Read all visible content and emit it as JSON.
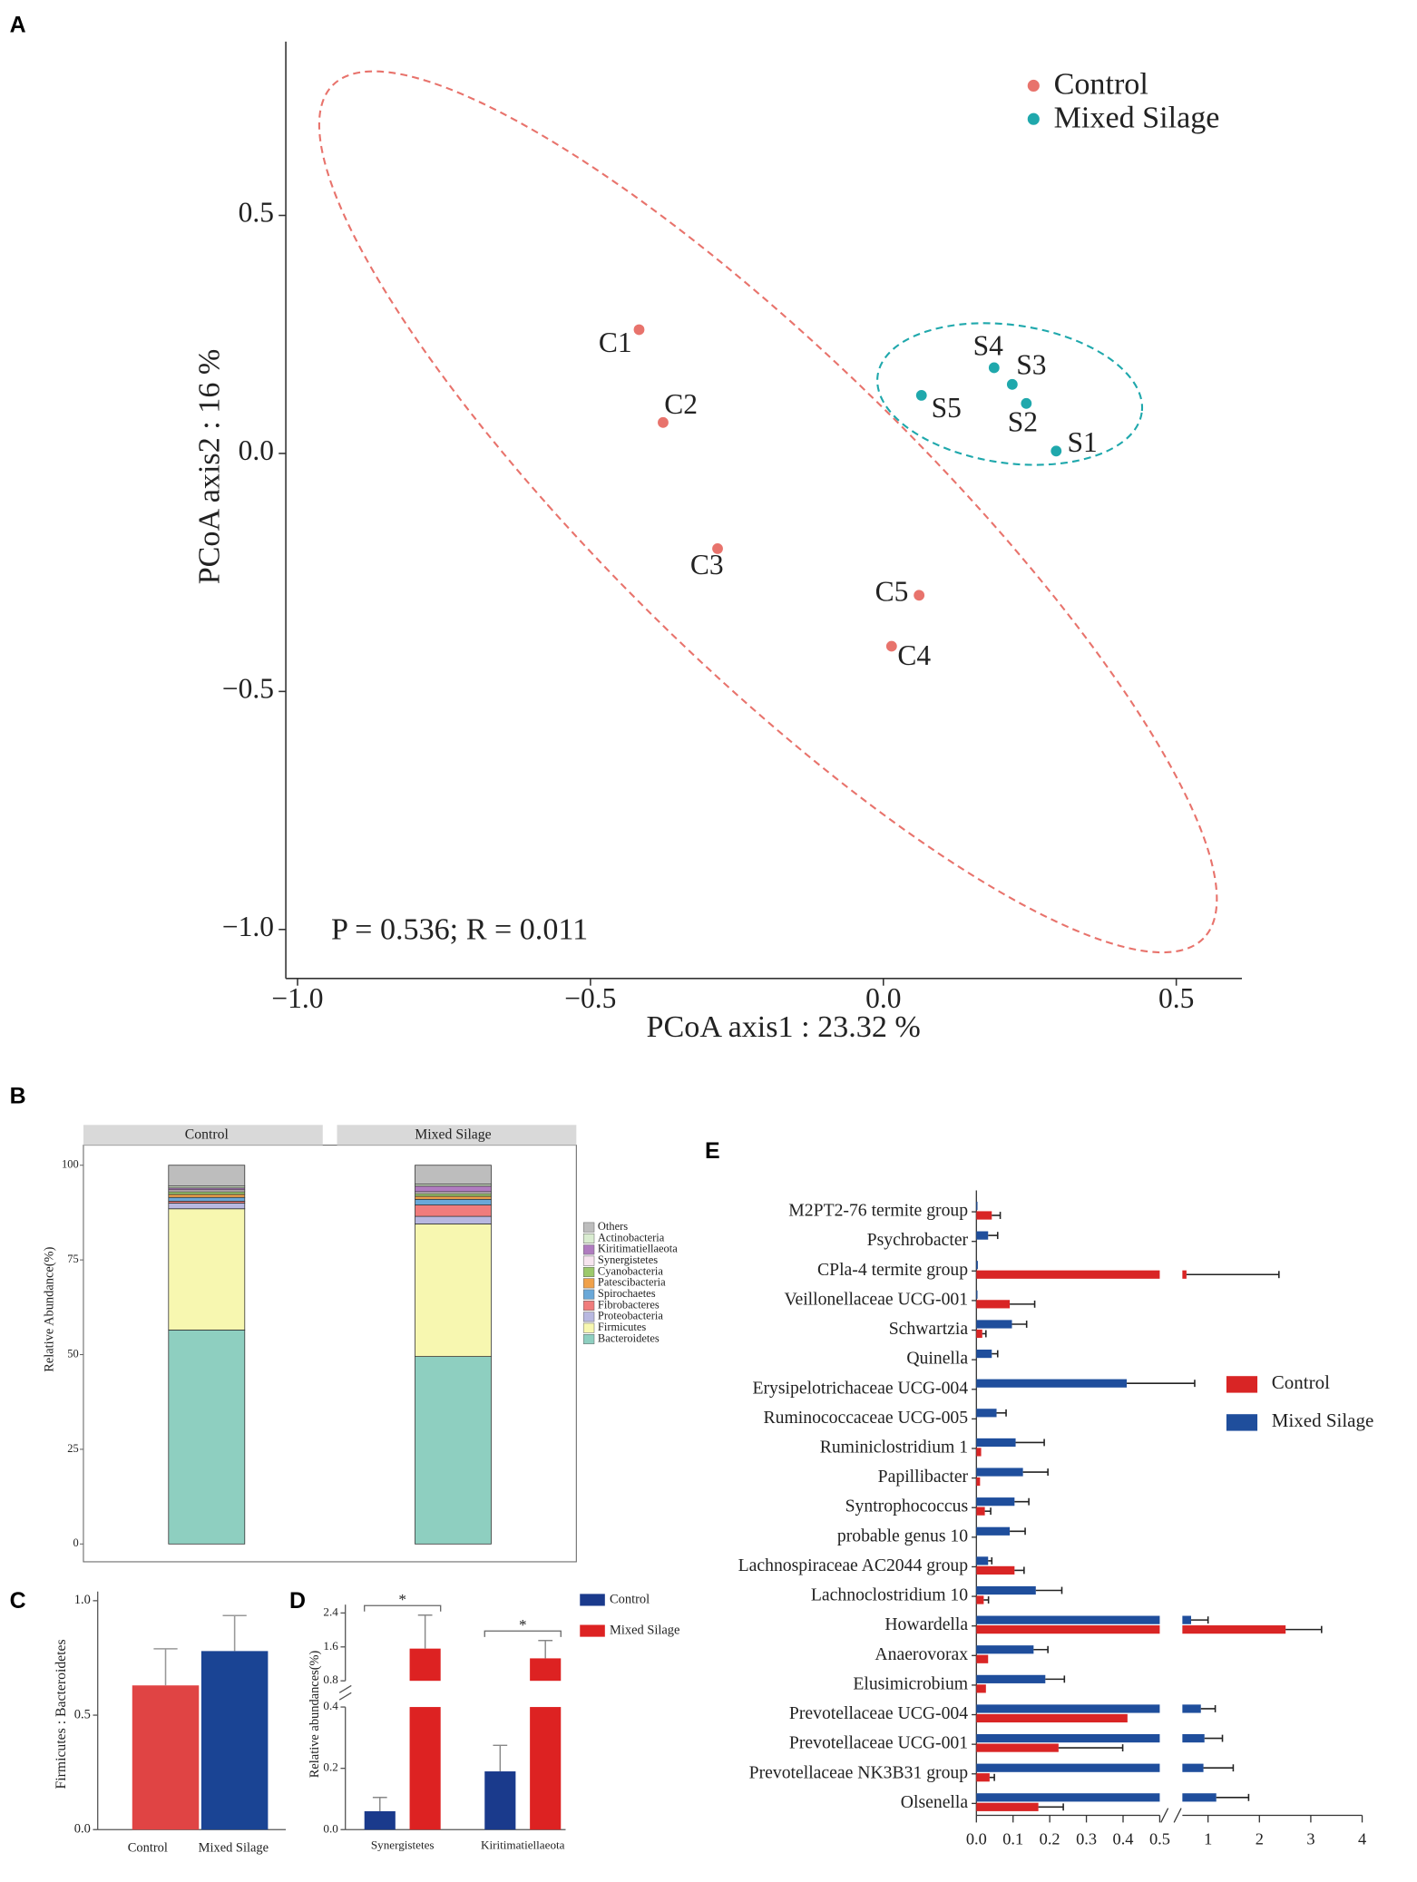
{
  "chart_data": [
    {
      "type": "scatter",
      "panel": "A",
      "xlabel": "PCoA axis1 : 23.32 %",
      "ylabel": "PCoA axis2 : 16 %",
      "annotation": "P = 0.536; R = 0.011",
      "xlim": [
        -1.02,
        0.612
      ],
      "ylim": [
        -1.103,
        0.865
      ],
      "xticks": [
        {
          "value": -1,
          "label": "−1.0"
        },
        {
          "value": -0.5,
          "label": "−0.5"
        },
        {
          "value": 0,
          "label": "0.0"
        },
        0.5
      ],
      "yticks": [
        {
          "value": -1,
          "label": "−1.0"
        },
        {
          "value": -0.5,
          "label": "−0.5"
        },
        {
          "value": 0,
          "label": "0.0"
        },
        0.5
      ],
      "series": [
        {
          "name": "Control",
          "color": "#e8736c",
          "labels": [
            "C1",
            "C2",
            "C3",
            "C4",
            "C5"
          ],
          "x": [
            -0.417,
            -0.376,
            -0.283,
            0.014,
            0.061
          ],
          "y": [
            0.26,
            0.065,
            -0.2,
            -0.405,
            -0.298
          ]
        },
        {
          "name": "Mixed Silage",
          "color": "#1fa8ac",
          "labels": [
            "S1",
            "S2",
            "S3",
            "S4",
            "S5"
          ],
          "x": [
            0.295,
            0.244,
            0.22,
            0.189,
            0.065
          ],
          "y": [
            0.005,
            0.105,
            0.145,
            0.18,
            0.122
          ]
        }
      ]
    },
    {
      "type": "stacked_bar",
      "panel": "B",
      "ylabel": "Relative Abundance(%)",
      "categories": [
        "Control",
        "Mixed Silage"
      ],
      "ylim": [
        -4.7,
        105.3
      ],
      "yticks": [
        0,
        25,
        50,
        75,
        100
      ],
      "series": [
        {
          "name": "Others",
          "color": "#bdbdbd",
          "values": [
            5.5,
            5
          ]
        },
        {
          "name": "Actinobacteria",
          "color": "#d9ecd0",
          "values": [
            0.5,
            0.5
          ]
        },
        {
          "name": "Kiritimatiellaeota",
          "color": "#b07cc0",
          "values": [
            0.5,
            1.5
          ]
        },
        {
          "name": "Synergistetes",
          "color": "#f7e4ef",
          "values": [
            0.5,
            0.5
          ]
        },
        {
          "name": "Cyanobacteria",
          "color": "#9cc96b",
          "values": [
            0.7,
            0.7
          ]
        },
        {
          "name": "Patescibacteria",
          "color": "#f0a14a",
          "values": [
            0.8,
            0.8
          ]
        },
        {
          "name": "Spirochaetes",
          "color": "#6aa8d8",
          "values": [
            1,
            1.5
          ]
        },
        {
          "name": "Fibrobacteres",
          "color": "#f07c7c",
          "values": [
            0.5,
            3
          ]
        },
        {
          "name": "Proteobacteria",
          "color": "#b8b8e0",
          "values": [
            1.5,
            2
          ]
        },
        {
          "name": "Firmicutes",
          "color": "#f7f7b0",
          "values": [
            32,
            35
          ]
        },
        {
          "name": "Bacteroidetes",
          "color": "#8ecfc0",
          "values": [
            56.5,
            49.5
          ]
        }
      ]
    },
    {
      "type": "bar",
      "panel": "C",
      "ylabel": "Firmicutes : Bacteroidetes",
      "categories": [
        "Control",
        "Mixed Silage"
      ],
      "values": [
        0.63,
        0.78
      ],
      "errors": [
        0.16,
        0.155
      ],
      "colors": [
        "#e04444",
        "#1a4494"
      ],
      "ylim": [
        0,
        1.04
      ],
      "yticks": [
        {
          "value": 0,
          "label": "0.0"
        },
        0.5,
        {
          "value": 1,
          "label": "1.0"
        }
      ]
    },
    {
      "type": "grouped_bar",
      "panel": "D",
      "ylabel": "Relative abundances(%)",
      "categories": [
        "Synergistetes",
        "Kiritimatiellaeota"
      ],
      "annotations": [
        "*",
        "*"
      ],
      "ylim": [
        0,
        2.4
      ],
      "ybreak": [
        0.4,
        0.8
      ],
      "yticks": [
        {
          "value": 0,
          "label": "0.0"
        },
        0.2,
        0.4,
        0.8,
        1.6,
        2.4
      ],
      "series": [
        {
          "name": "Control",
          "color": "#1a3a8c",
          "values": [
            0.06,
            0.19
          ],
          "errors": [
            0.045,
            0.085
          ]
        },
        {
          "name": "Mixed Silage",
          "color": "#dd2222",
          "values": [
            1.56,
            1.33
          ],
          "errors": [
            0.79,
            0.42
          ]
        }
      ]
    },
    {
      "type": "hbar",
      "panel": "E",
      "categories": [
        "M2PT2-76 termite group",
        "Psychrobacter",
        "CPla-4 termite group",
        "Veillonellaceae UCG-001",
        "Schwartzia",
        "Quinella",
        "Erysipelotrichaceae UCG-004",
        "Ruminococcaceae UCG-005",
        "Ruminiclostridium 1",
        "Papillibacter",
        "Syntrophococcus",
        "probable genus 10",
        "Lachnospiraceae AC2044 group",
        "Lachnoclostridium 10",
        "Howardella",
        "Anaerovorax",
        "Elusimicrobium",
        "Prevotellaceae UCG-004",
        "Prevotellaceae UCG-001",
        "Prevotellaceae NK3B31 group",
        "Olsenella"
      ],
      "xlim": [
        0,
        4
      ],
      "xbreak": 0.5,
      "xticks": [
        {
          "value": 0,
          "label": "0.0"
        },
        0.1,
        0.2,
        0.3,
        0.4,
        0.5,
        1,
        2,
        3,
        4
      ],
      "series": [
        {
          "name": "Control",
          "color": "#d92525",
          "values": [
            0.042,
            0,
            0.58,
            0.091,
            0.016,
            0,
            0,
            0,
            0.013,
            0.01,
            0.023,
            0,
            0.104,
            0.02,
            2.51,
            0.032,
            0.026,
            0.412,
            0.224,
            0.036,
            0.169
          ],
          "errors": [
            0.023,
            0,
            1.8,
            0.068,
            0.01,
            0,
            0,
            0,
            0,
            0,
            0.016,
            0,
            0.026,
            0.013,
            0.7,
            0,
            0,
            0,
            0.175,
            0.013,
            0.068
          ]
        },
        {
          "name": "Mixed Silage",
          "color": "#1f4e9c",
          "values": [
            0.003,
            0.032,
            0.004,
            0.003,
            0.097,
            0.042,
            0.41,
            0.055,
            0.107,
            0.127,
            0.104,
            0.091,
            0.032,
            0.162,
            0.67,
            0.156,
            0.188,
            0.86,
            0.93,
            0.91,
            1.16
          ],
          "errors": [
            0,
            0.026,
            0,
            0,
            0.04,
            0.016,
            0.33,
            0.026,
            0.078,
            0.068,
            0.039,
            0.042,
            0.01,
            0.071,
            0.33,
            0.039,
            0.052,
            0.28,
            0.35,
            0.58,
            0.63
          ]
        }
      ]
    }
  ]
}
